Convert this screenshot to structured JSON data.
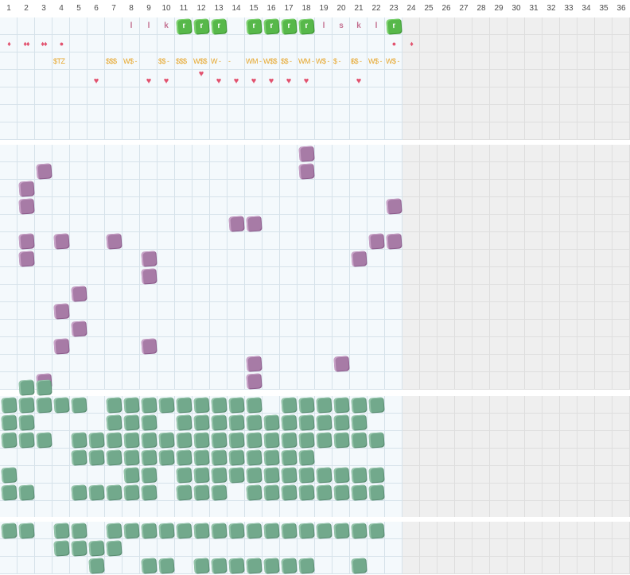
{
  "columns": [
    "1",
    "2",
    "3",
    "4",
    "5",
    "6",
    "7",
    "8",
    "9",
    "10",
    "11",
    "12",
    "13",
    "14",
    "15",
    "16",
    "17",
    "18",
    "19",
    "20",
    "21",
    "22",
    "23",
    "24",
    "25",
    "26",
    "27",
    "28",
    "29",
    "30",
    "31",
    "32",
    "33",
    "34",
    "35",
    "36"
  ],
  "active_columns": 23,
  "colors": {
    "cell": "#f4f9fc",
    "cell_inactive": "#efefef",
    "grid_line": "#d6e2ea",
    "purple_tile": "#a77ba6",
    "green_tile": "#72a98c",
    "lime_tile": "#57b84a",
    "letter": "#c36f8f",
    "money": "#e6a62b",
    "heart": "#e2536f"
  },
  "icons": {
    "heart": "heart-icon",
    "drop": "drop-icon",
    "dot": "dot-icon",
    "tile": "blob-tile"
  },
  "top_panel": {
    "row1": [
      {
        "col": 8,
        "kind": "letter",
        "text": "l"
      },
      {
        "col": 9,
        "kind": "letter",
        "text": "l"
      },
      {
        "col": 10,
        "kind": "letter",
        "text": "k"
      },
      {
        "col": 11,
        "kind": "lime",
        "text": "r"
      },
      {
        "col": 12,
        "kind": "lime",
        "text": "r"
      },
      {
        "col": 13,
        "kind": "lime",
        "text": "r"
      },
      {
        "col": 15,
        "kind": "lime",
        "text": "r"
      },
      {
        "col": 16,
        "kind": "lime",
        "text": "r"
      },
      {
        "col": 17,
        "kind": "lime",
        "text": "r"
      },
      {
        "col": 18,
        "kind": "lime",
        "text": "r"
      },
      {
        "col": 19,
        "kind": "letter",
        "text": "l"
      },
      {
        "col": 20,
        "kind": "letter",
        "text": "s"
      },
      {
        "col": 21,
        "kind": "letter",
        "text": "k"
      },
      {
        "col": 22,
        "kind": "letter",
        "text": "l"
      },
      {
        "col": 23,
        "kind": "lime",
        "text": "r"
      }
    ],
    "row2": [
      {
        "col": 1,
        "kind": "drop",
        "text": "♦"
      },
      {
        "col": 2,
        "kind": "drop",
        "text": "♦♦"
      },
      {
        "col": 3,
        "kind": "drop",
        "text": "♦♦"
      },
      {
        "col": 4,
        "kind": "dot",
        "text": "●"
      },
      {
        "col": 23,
        "kind": "dot",
        "text": "●"
      },
      {
        "col": 24,
        "kind": "drop",
        "text": "♦"
      }
    ],
    "money": [
      {
        "col": 4,
        "text": "$TZ"
      },
      {
        "col": 7,
        "text": "$$$"
      },
      {
        "col": 8,
        "text": "W$ -"
      },
      {
        "col": 10,
        "text": "$$ -"
      },
      {
        "col": 11,
        "text": "$$$"
      },
      {
        "col": 12,
        "text": "W$$"
      },
      {
        "col": 13,
        "text": "W -"
      },
      {
        "col": 14,
        "text": "-"
      },
      {
        "col": 15,
        "text": "WM -"
      },
      {
        "col": 16,
        "text": "W$$"
      },
      {
        "col": 17,
        "text": "$$ -"
      },
      {
        "col": 18,
        "text": "WM -"
      },
      {
        "col": 19,
        "text": "W$ -"
      },
      {
        "col": 20,
        "text": "$ -"
      },
      {
        "col": 21,
        "text": "-"
      },
      {
        "col": 21,
        "text": "$$ -"
      },
      {
        "col": 22,
        "text": "W$ -"
      },
      {
        "col": 23,
        "text": "W$ -"
      }
    ],
    "hearts_row4": [
      12
    ],
    "hearts_row5": [
      6,
      9,
      10,
      13,
      14,
      15,
      16,
      17,
      18,
      21
    ]
  },
  "purple_tiles": [
    [
      0,
      18
    ],
    [
      1,
      3
    ],
    [
      1,
      18
    ],
    [
      2,
      2
    ],
    [
      3,
      2
    ],
    [
      3,
      23
    ],
    [
      4,
      14
    ],
    [
      4,
      15
    ],
    [
      5,
      2
    ],
    [
      5,
      4
    ],
    [
      5,
      7
    ],
    [
      5,
      22
    ],
    [
      5,
      23
    ],
    [
      6,
      2
    ],
    [
      6,
      9
    ],
    [
      6,
      21
    ],
    [
      7,
      9
    ],
    [
      8,
      5
    ],
    [
      9,
      4
    ],
    [
      10,
      5
    ],
    [
      11,
      4
    ],
    [
      11,
      9
    ],
    [
      12,
      15
    ],
    [
      12,
      20
    ],
    [
      13,
      3
    ],
    [
      13,
      15
    ]
  ],
  "green_tiles": [
    [
      0,
      2
    ],
    [
      0,
      3
    ],
    [
      1,
      1
    ],
    [
      1,
      2
    ],
    [
      1,
      3
    ],
    [
      1,
      4
    ],
    [
      1,
      5
    ],
    [
      1,
      7
    ],
    [
      1,
      8
    ],
    [
      1,
      9
    ],
    [
      1,
      10
    ],
    [
      1,
      11
    ],
    [
      1,
      12
    ],
    [
      1,
      13
    ],
    [
      1,
      14
    ],
    [
      1,
      15
    ],
    [
      1,
      17
    ],
    [
      1,
      18
    ],
    [
      1,
      19
    ],
    [
      1,
      20
    ],
    [
      1,
      21
    ],
    [
      1,
      22
    ],
    [
      2,
      1
    ],
    [
      2,
      2
    ],
    [
      2,
      7
    ],
    [
      2,
      8
    ],
    [
      2,
      9
    ],
    [
      2,
      11
    ],
    [
      2,
      12
    ],
    [
      2,
      13
    ],
    [
      2,
      14
    ],
    [
      2,
      15
    ],
    [
      2,
      16
    ],
    [
      2,
      17
    ],
    [
      2,
      18
    ],
    [
      2,
      19
    ],
    [
      2,
      20
    ],
    [
      2,
      21
    ],
    [
      3,
      1
    ],
    [
      3,
      2
    ],
    [
      3,
      3
    ],
    [
      3,
      5
    ],
    [
      3,
      6
    ],
    [
      3,
      7
    ],
    [
      3,
      8
    ],
    [
      3,
      9
    ],
    [
      3,
      10
    ],
    [
      3,
      11
    ],
    [
      3,
      12
    ],
    [
      3,
      13
    ],
    [
      3,
      14
    ],
    [
      3,
      15
    ],
    [
      3,
      16
    ],
    [
      3,
      17
    ],
    [
      3,
      18
    ],
    [
      3,
      19
    ],
    [
      3,
      20
    ],
    [
      3,
      21
    ],
    [
      3,
      22
    ],
    [
      4,
      5
    ],
    [
      4,
      6
    ],
    [
      4,
      7
    ],
    [
      4,
      8
    ],
    [
      4,
      9
    ],
    [
      4,
      10
    ],
    [
      4,
      11
    ],
    [
      4,
      12
    ],
    [
      4,
      13
    ],
    [
      4,
      14
    ],
    [
      4,
      15
    ],
    [
      4,
      16
    ],
    [
      4,
      17
    ],
    [
      4,
      18
    ],
    [
      5,
      1
    ],
    [
      5,
      8
    ],
    [
      5,
      9
    ],
    [
      5,
      11
    ],
    [
      5,
      12
    ],
    [
      5,
      13
    ],
    [
      5,
      14
    ],
    [
      5,
      15
    ],
    [
      5,
      16
    ],
    [
      5,
      17
    ],
    [
      5,
      18
    ],
    [
      5,
      19
    ],
    [
      5,
      20
    ],
    [
      5,
      21
    ],
    [
      5,
      22
    ],
    [
      6,
      1
    ],
    [
      6,
      2
    ],
    [
      6,
      5
    ],
    [
      6,
      6
    ],
    [
      6,
      7
    ],
    [
      6,
      8
    ],
    [
      6,
      9
    ],
    [
      6,
      11
    ],
    [
      6,
      12
    ],
    [
      6,
      13
    ],
    [
      6,
      15
    ],
    [
      6,
      16
    ],
    [
      6,
      17
    ],
    [
      6,
      18
    ],
    [
      6,
      19
    ],
    [
      6,
      20
    ],
    [
      6,
      21
    ],
    [
      6,
      22
    ]
  ],
  "bottom_tiles": [
    [
      0,
      1
    ],
    [
      0,
      2
    ],
    [
      0,
      4
    ],
    [
      0,
      5
    ],
    [
      0,
      7
    ],
    [
      0,
      8
    ],
    [
      0,
      9
    ],
    [
      0,
      10
    ],
    [
      0,
      11
    ],
    [
      0,
      12
    ],
    [
      0,
      13
    ],
    [
      0,
      14
    ],
    [
      0,
      15
    ],
    [
      0,
      16
    ],
    [
      0,
      17
    ],
    [
      0,
      18
    ],
    [
      0,
      19
    ],
    [
      0,
      20
    ],
    [
      0,
      21
    ],
    [
      0,
      22
    ],
    [
      1,
      4
    ],
    [
      1,
      5
    ],
    [
      1,
      6
    ],
    [
      1,
      7
    ],
    [
      2,
      6
    ],
    [
      2,
      9
    ],
    [
      2,
      10
    ],
    [
      2,
      12
    ],
    [
      2,
      13
    ],
    [
      2,
      14
    ],
    [
      2,
      15
    ],
    [
      2,
      16
    ],
    [
      2,
      17
    ],
    [
      2,
      18
    ],
    [
      2,
      21
    ]
  ]
}
